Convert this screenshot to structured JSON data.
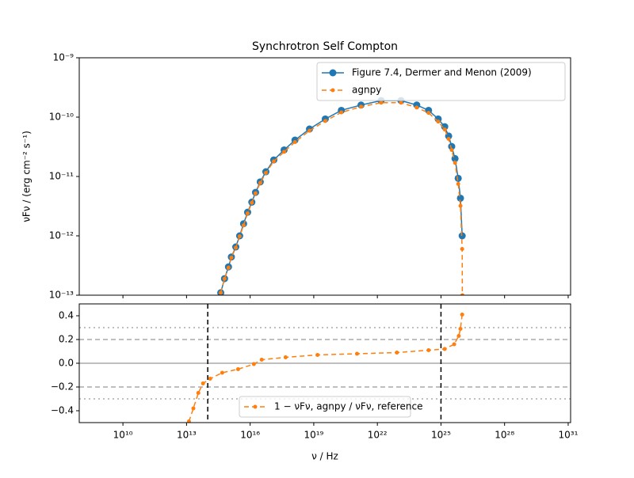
{
  "chart_data": [
    {
      "type": "line",
      "title": "Synchrotron Self Compton",
      "ylabel": "νFν / (erg cm⁻² s⁻¹)",
      "xscale": "log",
      "yscale": "log",
      "xlim": [
        87000000.0,
        1.3e+31
      ],
      "ylim": [
        1e-13,
        1e-09
      ],
      "yticks": [
        {
          "value": 1e-13,
          "label": "10⁻¹³"
        },
        {
          "value": 1e-12,
          "label": "10⁻¹²"
        },
        {
          "value": 1e-11,
          "label": "10⁻¹¹"
        },
        {
          "value": 1e-10,
          "label": "10⁻¹⁰"
        },
        {
          "value": 1e-09,
          "label": "10⁻⁹"
        }
      ],
      "legend": "upper right",
      "series": [
        {
          "name": "Figure 7.4, Dermer and Menon (2009)",
          "color": "#1f77b4",
          "linestyle": "solid",
          "marker_size": 4.5,
          "x": [
            410000000000000.0,
            620000000000000.0,
            950000000000000.0,
            1300000000000000.0,
            2100000000000000.0,
            3200000000000000.0,
            4900000000000000.0,
            7600000000000000.0,
            1.2e+16,
            1.8e+16,
            3e+16,
            5.5e+16,
            1.3e+17,
            4e+17,
            1.3e+18,
            6.3e+18,
            3.5e+19,
            2e+20,
            1.7e+21,
            1.5e+22,
            1.3e+23,
            7.2e+23,
            2.6e+24,
            7.4e+24,
            1.5e+25,
            2.3e+25,
            3.2e+25,
            4.6e+25,
            6.5e+25,
            8.3e+25,
            1e+26
          ],
          "values": [
            1.1e-13,
            1.9e-13,
            3e-13,
            4.4e-13,
            6.5e-13,
            1e-12,
            1.6e-12,
            2.5e-12,
            3.7e-12,
            5.4e-12,
            8.1e-12,
            1.2e-11,
            1.9e-11,
            2.8e-11,
            4.1e-11,
            6.3e-11,
            9.3e-11,
            1.3e-10,
            1.6e-10,
            1.9e-10,
            1.9e-10,
            1.6e-10,
            1.3e-10,
            9.3e-11,
            6.9e-11,
            4.8e-11,
            3.2e-11,
            2e-11,
            9.3e-12,
            4.3e-12,
            1e-12
          ]
        },
        {
          "name": "agnpy",
          "color": "#ff7f0e",
          "linestyle": "dashed",
          "marker_size": 2.5,
          "x": [
            410000000000000.0,
            620000000000000.0,
            950000000000000.0,
            1300000000000000.0,
            2100000000000000.0,
            3200000000000000.0,
            4900000000000000.0,
            7600000000000000.0,
            1.2e+16,
            1.8e+16,
            3e+16,
            5.5e+16,
            1.3e+17,
            4e+17,
            1.3e+18,
            6.3e+18,
            3.5e+19,
            2e+20,
            1.7e+21,
            1.5e+22,
            1.3e+23,
            7.2e+23,
            2.6e+24,
            7.4e+24,
            1.5e+25,
            2.3e+25,
            3.2e+25,
            4.6e+25,
            6.5e+25,
            8.3e+25,
            1e+26,
            1.02e+26
          ],
          "values": [
            1.1e-13,
            1.9e-13,
            2.9e-13,
            4.3e-13,
            6.3e-13,
            9.8e-13,
            1.5e-12,
            2.4e-12,
            3.6e-12,
            5.2e-12,
            7.8e-12,
            1.15e-11,
            1.8e-11,
            2.6e-11,
            3.8e-11,
            5.9e-11,
            8.6e-11,
            1.2e-10,
            1.5e-10,
            1.75e-10,
            1.75e-10,
            1.45e-10,
            1.18e-10,
            8.4e-11,
            6.2e-11,
            4.3e-11,
            2.8e-11,
            1.7e-11,
            7.5e-12,
            3.2e-12,
            6e-13,
            1e-13
          ]
        }
      ]
    },
    {
      "type": "line",
      "xlabel": "ν / Hz",
      "xscale": "log",
      "xlim": [
        87000000.0,
        1.3e+31
      ],
      "ylim": [
        -0.5,
        0.5
      ],
      "xticks": [
        {
          "value": 10000000000.0,
          "label": "10¹⁰"
        },
        {
          "value": 10000000000000.0,
          "label": "10¹³"
        },
        {
          "value": 1e+16,
          "label": "10¹⁶"
        },
        {
          "value": 1e+19,
          "label": "10¹⁹"
        },
        {
          "value": 1e+22,
          "label": "10²²"
        },
        {
          "value": 1e+25,
          "label": "10²⁵"
        },
        {
          "value": 1e+28,
          "label": "10²⁸"
        },
        {
          "value": 1e+31,
          "label": "10³¹"
        }
      ],
      "yticks": [
        {
          "value": -0.4,
          "label": "−0.4"
        },
        {
          "value": -0.2,
          "label": "−0.2"
        },
        {
          "value": 0,
          "label": "0.0"
        },
        0.2,
        0.4
      ],
      "legend": "lower center",
      "hlines": [
        {
          "y": 0,
          "style": "solid",
          "color": "#aaaaaa"
        },
        {
          "y": 0.2,
          "style": "dashed",
          "color": "#aaaaaa"
        },
        {
          "y": -0.2,
          "style": "dashed",
          "color": "#aaaaaa"
        },
        {
          "y": 0.3,
          "style": "dotted",
          "color": "#aaaaaa"
        },
        {
          "y": -0.3,
          "style": "dotted",
          "color": "#aaaaaa"
        }
      ],
      "vlines": [
        {
          "x": 100000000000000.0,
          "style": "dashed",
          "color": "#000000"
        },
        {
          "x": 1e+25,
          "style": "dashed",
          "color": "#000000"
        }
      ],
      "series": [
        {
          "name": "1 − νFν, agnpy / νFν, reference",
          "color": "#ff7f0e",
          "linestyle": "dashed",
          "marker_size": 2.5,
          "x": [
            13000000000000.0,
            21000000000000.0,
            36000000000000.0,
            60000000000000.0,
            130000000000000.0,
            480000000000000.0,
            2700000000000000.0,
            1.5e+16,
            3.5e+16,
            4.7e+17,
            1.5e+19,
            1.1e+21,
            8.3e+22,
            2.6e+24,
            1.5e+25,
            4.2e+25,
            6.9e+25,
            8.3e+25,
            1e+26
          ],
          "values": [
            -0.49,
            -0.38,
            -0.25,
            -0.17,
            -0.13,
            -0.08,
            -0.05,
            -0.007,
            0.03,
            0.05,
            0.07,
            0.08,
            0.09,
            0.11,
            0.12,
            0.16,
            0.23,
            0.29,
            0.41
          ]
        }
      ]
    }
  ]
}
